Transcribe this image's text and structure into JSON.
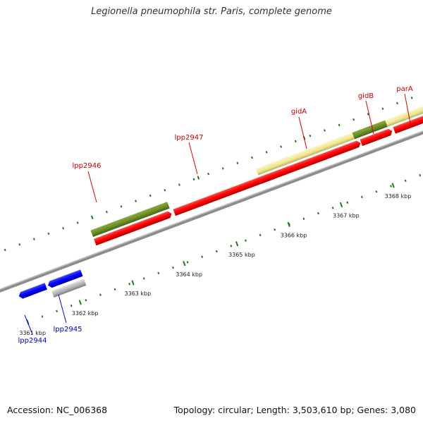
{
  "title": "Legionella pneumophila str. Paris, complete genome",
  "footer": {
    "accession": "Accession: NC_006368",
    "summary": "Topology: circular; Length: 3,503,610 bp; Genes: 3,080"
  },
  "colors": {
    "forward_gene": "#ff0000",
    "reverse_gene": "#0000ff",
    "upper_feature": "#6b8e23",
    "highlight_feature": "#f0e68c",
    "reverse_feature": "#b3b3b3",
    "ticks": "#006400",
    "backbone": "#808080",
    "forward_label": "#cc0000",
    "reverse_label": "#0000cc"
  },
  "kbp_labels": [
    "3361 kbp",
    "3362 kbp",
    "3363 kbp",
    "3364 kbp",
    "3365 kbp",
    "3366 kbp",
    "3367 kbp",
    "3368 kbp"
  ],
  "forward_labels": [
    "lpp2946",
    "lpp2947",
    "gidA",
    "gidB",
    "parA"
  ],
  "reverse_labels": [
    "lpp2944",
    "lpp2945"
  ]
}
